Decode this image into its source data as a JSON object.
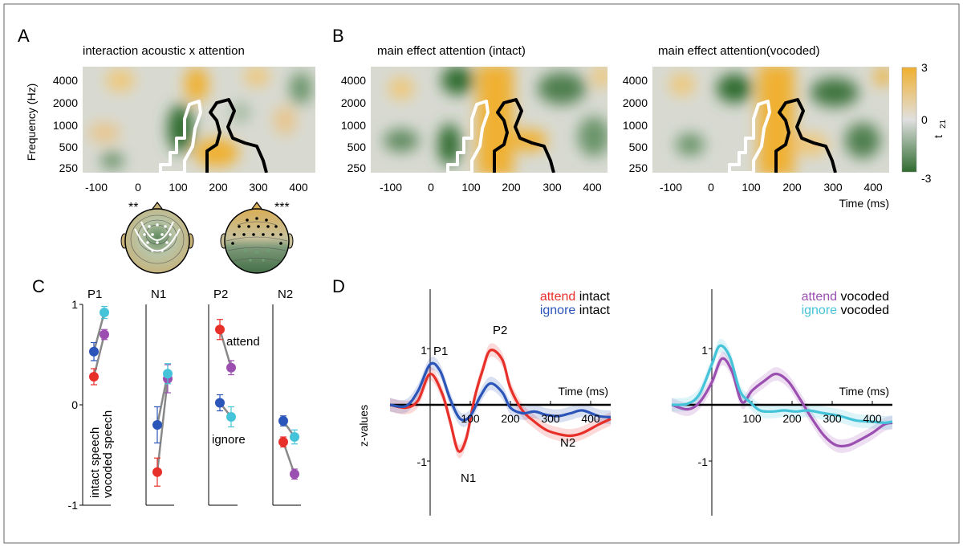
{
  "panels": {
    "A": {
      "letter": "A",
      "title": "interaction acoustic x attention",
      "ylabel": "Frequency (Hz)",
      "yticks": [
        "4000",
        "2000",
        "1000",
        "500",
        "250"
      ],
      "xticks": [
        "-100",
        "0",
        "100",
        "200",
        "300",
        "400"
      ],
      "topo_left_stars": "**",
      "topo_right_stars": "***"
    },
    "B": {
      "letter": "B",
      "title_left": "main effect attention (intact)",
      "title_right": "main effect attention(vocoded)",
      "yticks": [
        "4000",
        "2000",
        "1000",
        "500",
        "250"
      ],
      "xticks": [
        "-100",
        "0",
        "100",
        "200",
        "300",
        "400"
      ],
      "xlabel": "Time (ms)",
      "colorbar": {
        "max": "3",
        "mid": "0",
        "min": "-3",
        "label_main": "t",
        "label_sub": "21"
      }
    },
    "C": {
      "letter": "C",
      "yticks": [
        "1",
        "0",
        "-1"
      ],
      "condition_label_1": "intact speech",
      "condition_label_2": "vocoded speech",
      "label_attend": "attend",
      "label_ignore": "ignore"
    },
    "D": {
      "letter": "D",
      "ylabel": "z-values",
      "yticks": [
        "1",
        "-1"
      ],
      "left_legend": {
        "attend_word": "attend",
        "ignore_word": "ignore",
        "suffix": "intact"
      },
      "right_legend": {
        "attend_word": "attend",
        "ignore_word": "ignore",
        "suffix": "vocoded"
      },
      "xlabel": "Time (ms)",
      "xticks": [
        "100",
        "200",
        "300",
        "400"
      ],
      "peak_labels": {
        "P1": "P1",
        "P2": "P2",
        "N1": "N1",
        "N2": "N2"
      }
    }
  },
  "colors": {
    "attend_intact": "#e8302a",
    "ignore_intact": "#2b55b8",
    "attend_vocoded": "#9b4fb0",
    "ignore_vocoded": "#45c3d8",
    "positive": "#f0b030",
    "negative": "#2f6b2f"
  },
  "chart_data": [
    {
      "type": "scatter",
      "title": "",
      "categories": [
        "P1",
        "N1",
        "P2",
        "N2"
      ],
      "ylim": [
        -1,
        1
      ],
      "series": [
        {
          "name": "attend intact",
          "color": "#e8302a",
          "values": [
            0.28,
            -0.67,
            0.75,
            -0.37
          ],
          "err": [
            0.08,
            0.14,
            0.1,
            0.05
          ]
        },
        {
          "name": "ignore intact",
          "color": "#2b55b8",
          "values": [
            0.53,
            -0.2,
            0.02,
            -0.16
          ],
          "err": [
            0.09,
            0.18,
            0.08,
            0.05
          ]
        },
        {
          "name": "attend vocoded",
          "color": "#9b4fb0",
          "values": [
            0.7,
            0.26,
            0.37,
            -0.69
          ],
          "err": [
            0.05,
            0.14,
            0.07,
            0.05
          ]
        },
        {
          "name": "ignore vocoded",
          "color": "#45c3d8",
          "values": [
            0.92,
            0.31,
            -0.12,
            -0.32
          ],
          "err": [
            0.06,
            0.1,
            0.1,
            0.07
          ]
        }
      ]
    },
    {
      "type": "line",
      "xlabel": "Time (ms)",
      "ylabel": "z-values",
      "xlim": [
        -100,
        450
      ],
      "ylim": [
        -1.9,
        1.6
      ],
      "series": [
        {
          "name": "attend intact",
          "color": "#e8302a",
          "x": [
            -100,
            -60,
            -30,
            0,
            30,
            50,
            70,
            90,
            110,
            130,
            150,
            180,
            200,
            230,
            260,
            290,
            320,
            350,
            380,
            420,
            450
          ],
          "y": [
            0,
            -0.05,
            0.08,
            0.55,
            0.2,
            -0.3,
            -0.82,
            -0.6,
            0.1,
            0.6,
            0.97,
            0.8,
            0.3,
            -0.1,
            -0.3,
            -0.45,
            -0.52,
            -0.55,
            -0.5,
            -0.35,
            -0.25
          ]
        },
        {
          "name": "ignore intact",
          "color": "#2b55b8",
          "x": [
            -100,
            -60,
            -30,
            0,
            25,
            50,
            75,
            100,
            125,
            150,
            180,
            200,
            230,
            260,
            290,
            320,
            350,
            380,
            420,
            450
          ],
          "y": [
            0,
            -0.02,
            0.25,
            0.72,
            0.6,
            0.1,
            -0.25,
            -0.2,
            0.15,
            0.38,
            0.22,
            -0.05,
            -0.15,
            -0.12,
            -0.18,
            -0.2,
            -0.15,
            -0.1,
            -0.2,
            -0.22
          ]
        },
        {
          "name": "baseline",
          "color": "#000000",
          "x": [
            -100,
            450
          ],
          "y": [
            0,
            0
          ]
        },
        {
          "name": "attend vocoded",
          "color": "#9b4fb0",
          "x": [
            -100,
            -60,
            -30,
            0,
            25,
            50,
            75,
            100,
            130,
            160,
            190,
            220,
            250,
            280,
            310,
            340,
            370,
            400,
            430,
            450
          ],
          "y": [
            0,
            -0.08,
            0.05,
            0.4,
            0.82,
            0.6,
            0.05,
            0.25,
            0.42,
            0.55,
            0.42,
            0.1,
            -0.25,
            -0.55,
            -0.72,
            -0.72,
            -0.62,
            -0.5,
            -0.35,
            -0.32
          ]
        },
        {
          "name": "ignore vocoded",
          "color": "#45c3d8",
          "x": [
            -100,
            -60,
            -30,
            0,
            20,
            45,
            70,
            95,
            120,
            150,
            180,
            210,
            240,
            280,
            320,
            360,
            400,
            430,
            450
          ],
          "y": [
            0,
            0.02,
            0.2,
            0.72,
            1.05,
            0.85,
            0.25,
            0.05,
            -0.1,
            -0.12,
            -0.1,
            -0.12,
            -0.1,
            -0.15,
            -0.2,
            -0.28,
            -0.3,
            -0.32,
            -0.3
          ]
        }
      ]
    }
  ]
}
